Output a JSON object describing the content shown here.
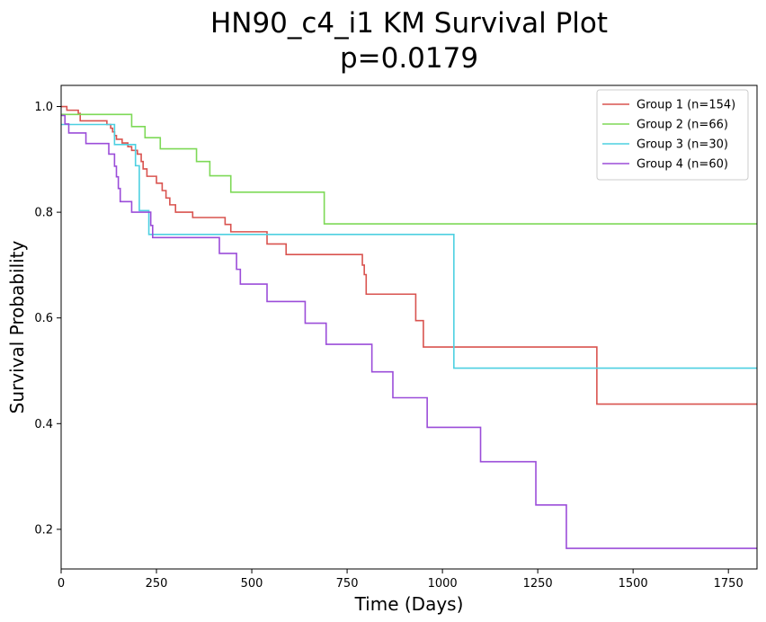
{
  "chart_data": {
    "type": "line",
    "step": "post",
    "title_lines": [
      "HN90_c4_i1 KM Survival Plot",
      "p=0.0179"
    ],
    "xlabel": "Time (Days)",
    "ylabel": "Survival Probability",
    "xlim": [
      0,
      1825
    ],
    "ylim": [
      0.125,
      1.04
    ],
    "xticks": [
      0,
      250,
      500,
      750,
      1000,
      1250,
      1500,
      1750
    ],
    "xtick_labels": [
      "0",
      "250",
      "500",
      "750",
      "1000",
      "1250",
      "1500",
      "1750"
    ],
    "yticks": [
      0.2,
      0.4,
      0.6,
      0.8,
      1.0
    ],
    "ytick_labels": [
      "0.2",
      "0.4",
      "0.6",
      "0.8",
      "1.0"
    ],
    "grid": false,
    "legend_position": "top-right",
    "series": [
      {
        "name": "Group 1 (n=154)",
        "color": "#d9534f",
        "x": [
          0,
          15,
          45,
          50,
          120,
          130,
          135,
          140,
          145,
          160,
          175,
          185,
          200,
          210,
          215,
          225,
          250,
          265,
          275,
          285,
          300,
          345,
          430,
          445,
          540,
          590,
          790,
          795,
          800,
          930,
          950,
          1405,
          1825
        ],
        "y": [
          1.0,
          0.993,
          0.987,
          0.973,
          0.966,
          0.959,
          0.952,
          0.945,
          0.938,
          0.931,
          0.924,
          0.917,
          0.91,
          0.896,
          0.882,
          0.868,
          0.855,
          0.841,
          0.827,
          0.814,
          0.8,
          0.79,
          0.777,
          0.763,
          0.74,
          0.72,
          0.7,
          0.682,
          0.645,
          0.595,
          0.545,
          0.437,
          0.437
        ]
      },
      {
        "name": "Group 2 (n=66)",
        "color": "#7ed957",
        "x": [
          0,
          185,
          220,
          260,
          355,
          390,
          445,
          690,
          1825
        ],
        "y": [
          0.985,
          0.962,
          0.941,
          0.92,
          0.896,
          0.869,
          0.838,
          0.778,
          0.778
        ]
      },
      {
        "name": "Group 3 (n=30)",
        "color": "#4dd0e1",
        "x": [
          0,
          140,
          195,
          205,
          230,
          1030,
          1825
        ],
        "y": [
          0.966,
          0.928,
          0.888,
          0.803,
          0.758,
          0.505,
          0.505
        ]
      },
      {
        "name": "Group 4 (n=60)",
        "color": "#9b4dd9",
        "x": [
          0,
          10,
          20,
          65,
          125,
          140,
          145,
          150,
          155,
          185,
          235,
          240,
          415,
          460,
          470,
          540,
          640,
          695,
          815,
          870,
          960,
          1100,
          1245,
          1325,
          1825
        ],
        "y": [
          0.983,
          0.967,
          0.95,
          0.93,
          0.91,
          0.887,
          0.867,
          0.845,
          0.82,
          0.8,
          0.775,
          0.752,
          0.722,
          0.692,
          0.664,
          0.631,
          0.59,
          0.55,
          0.498,
          0.449,
          0.393,
          0.328,
          0.246,
          0.164,
          0.164
        ]
      }
    ]
  }
}
